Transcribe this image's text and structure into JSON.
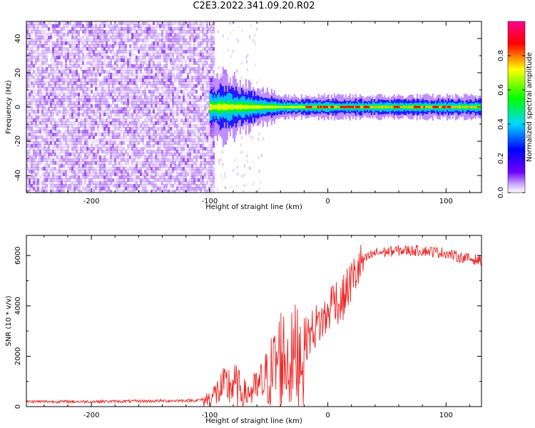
{
  "page": {
    "title": "C2E3.2022.341.09.20.R02"
  },
  "colors": {
    "line": "#ee2222",
    "noise": "#8f3cf0",
    "axis": "#000000",
    "colormap": [
      "#ffffff",
      "#7000ff",
      "#0000ff",
      "#00d8ff",
      "#00ff00",
      "#ffff00",
      "#ff0000",
      "#ff0080"
    ]
  },
  "chart_data": [
    {
      "type": "heatmap",
      "xlabel": "Height of straight line (km)",
      "ylabel": "Frequency (Hz)",
      "xlim": [
        -255,
        130
      ],
      "ylim": [
        -50,
        50
      ],
      "xticks": [
        -200,
        -100,
        0,
        100
      ],
      "yticks": [
        -40,
        -20,
        0,
        20,
        40
      ],
      "colorbar": {
        "label": "Normalized spectral amplitude",
        "range": [
          0,
          1
        ],
        "ticks": [
          "0.0",
          "0.2",
          "0.4",
          "0.6",
          "0.8"
        ],
        "colormap": "rainbow"
      },
      "features": [
        {
          "description": "broadband noise",
          "x_range": [
            -255,
            -97
          ],
          "amplitude": 0.15
        },
        {
          "description": "signal band",
          "x_range": [
            -100,
            130
          ],
          "center_frequency": 0,
          "peak_amplitude": 1.0
        }
      ]
    },
    {
      "type": "line",
      "xlabel": "Height of straight line (km)",
      "ylabel": "SNR (10 * v/v)",
      "xlim": [
        -255,
        130
      ],
      "ylim": [
        0,
        6800
      ],
      "xticks": [
        -200,
        -100,
        0,
        100
      ],
      "yticks": [
        0,
        2000,
        4000,
        6000
      ],
      "series": [
        {
          "x": [
            -255,
            -200,
            -150,
            -110,
            -100,
            -90,
            -80,
            -70,
            -60,
            -50,
            -40,
            -30,
            -20,
            -10,
            0,
            5,
            10,
            20,
            30,
            40,
            60,
            80,
            100,
            110,
            130
          ],
          "y": [
            200,
            200,
            220,
            250,
            320,
            700,
            900,
            500,
            700,
            1200,
            2000,
            1800,
            2600,
            3200,
            3600,
            4500,
            4000,
            5000,
            5800,
            6100,
            6200,
            6200,
            6100,
            5950,
            5800
          ]
        }
      ]
    }
  ]
}
